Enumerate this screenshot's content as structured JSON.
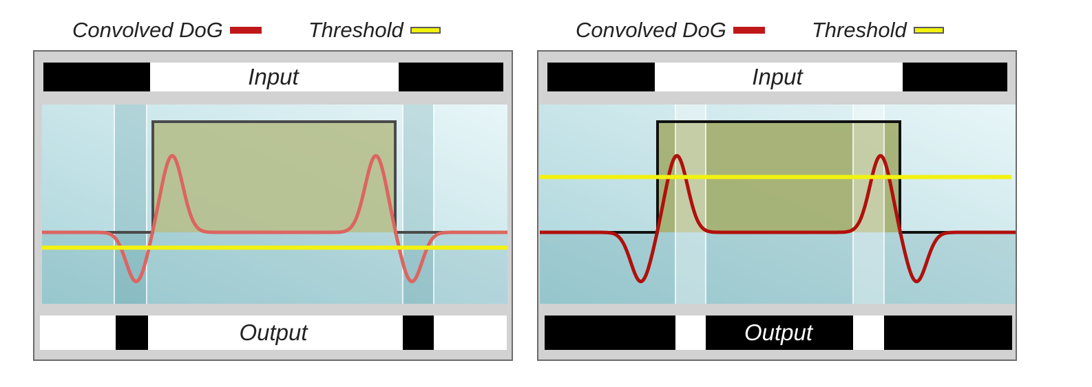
{
  "legend": {
    "dog_label": "Convolved DoG",
    "threshold_label": "Threshold"
  },
  "panels": [
    {
      "input_label": "Input",
      "output_label": "Output",
      "output_label_color": "#222222",
      "threshold_level": -0.15,
      "dog_color": "#dc6560",
      "input_strip": [
        "black",
        "white",
        "black"
      ],
      "output_strip": [
        "white",
        "black",
        "white",
        "black",
        "white"
      ]
    },
    {
      "input_label": "Input",
      "output_label": "Output",
      "output_label_color": "#ffffff",
      "threshold_level": 0.26,
      "dog_color": "#b0100c",
      "input_strip": [
        "black",
        "white",
        "black"
      ],
      "output_strip": [
        "black",
        "white",
        "black",
        "white",
        "black"
      ]
    }
  ],
  "colors": {
    "dog_line": "#b0100c",
    "threshold_line": "#f2f20f",
    "input_box_fill": "#b4bc86",
    "background_gradient_start": "#a9d4da",
    "background_gradient_end": "#e8f6f8"
  }
}
